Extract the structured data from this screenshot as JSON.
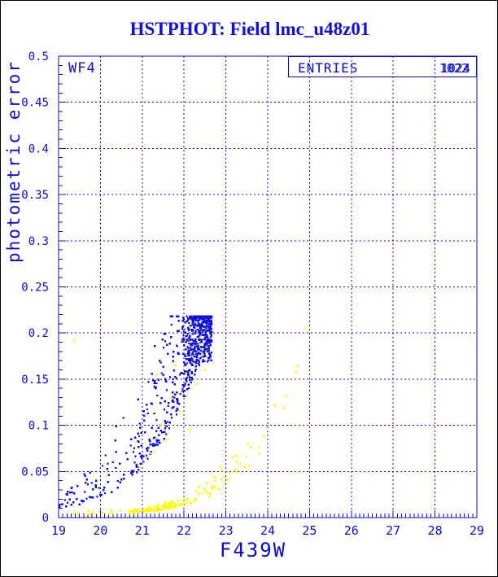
{
  "title": {
    "text": "HSTPHOT: Field lmc_u48z01"
  },
  "colors": {
    "ink": "#0b0bd0",
    "title": "#1010d8",
    "blue_points": "#1212d8",
    "yellow_points": "#ffff00",
    "background": "#ffffff",
    "outer_border": "#000000"
  },
  "chart_data": {
    "type": "scatter",
    "title": "HSTPHOT: Field lmc_u48z01",
    "xlabel": "F439W",
    "ylabel": "photometric error",
    "xlim": [
      19,
      29
    ],
    "ylim": [
      0,
      0.5
    ],
    "grid": "dashed lines at every major tick, both axes",
    "legend": "none",
    "x_ticks": [
      19,
      20,
      21,
      22,
      23,
      24,
      25,
      26,
      27,
      28,
      29
    ],
    "x_tick_labels": [
      "19",
      "20",
      "21",
      "22",
      "23",
      "24",
      "25",
      "26",
      "27",
      "28",
      "29"
    ],
    "y_ticks": [
      0,
      0.05,
      0.1,
      0.15,
      0.2,
      0.25,
      0.3,
      0.35,
      0.4,
      0.45,
      0.5
    ],
    "y_tick_labels": [
      "0",
      "0.05",
      "0.1",
      "0.15",
      "0.2",
      "0.25",
      "0.3",
      "0.35",
      "0.4",
      "0.45",
      "0.5"
    ],
    "x_grid": [
      20,
      21,
      22,
      23,
      24,
      25,
      26,
      27,
      28
    ],
    "y_grid": [
      0.05,
      0.1,
      0.15,
      0.2,
      0.25,
      0.3,
      0.35,
      0.4,
      0.45
    ],
    "x_minor_step": 0.1,
    "y_minor_step": 0.01,
    "annotations": {
      "detector_label": "WF4",
      "stats_box": {
        "label": "ENTRIES",
        "values": [
          "1024",
          "1022"
        ]
      }
    },
    "series": [
      {
        "name": "blue detections: error vs magnitude locus rising from (19,0.013) to dense cap at (22.0-22.66, 0.17-0.218)",
        "color": "#1212d8",
        "marker": "2px square",
        "trend_knots": [
          [
            19,
            0.013
          ],
          [
            19.5,
            0.018
          ],
          [
            20,
            0.027
          ],
          [
            20.5,
            0.04
          ],
          [
            21,
            0.063
          ],
          [
            21.5,
            0.097
          ],
          [
            22,
            0.147
          ],
          [
            22.3,
            0.177
          ],
          [
            22.66,
            0.211
          ]
        ],
        "outlier_points": [
          [
            19.15,
            0.019
          ],
          [
            19.28,
            0.027
          ],
          [
            19.45,
            0.034
          ],
          [
            19.62,
            0.047
          ],
          [
            19.9,
            0.04
          ],
          [
            20.05,
            0.056
          ],
          [
            20.2,
            0.046
          ],
          [
            20.3,
            0.06
          ],
          [
            20.38,
            0.099
          ],
          [
            20.55,
            0.108
          ],
          [
            20.62,
            0.07
          ],
          [
            20.73,
            0.078
          ],
          [
            20.9,
            0.128
          ],
          [
            21.05,
            0.105
          ],
          [
            21.15,
            0.147
          ],
          [
            21.3,
            0.186
          ],
          [
            21.45,
            0.168
          ],
          [
            21.55,
            0.199
          ],
          [
            21.7,
            0.209
          ],
          [
            21.85,
            0.178
          ]
        ]
      },
      {
        "name": "yellow detections: low-error locus along bottom plus sparse high-magnitude tail",
        "color": "#ffff00",
        "marker": "2px square",
        "trend_knots": [
          [
            19,
            0.0035
          ],
          [
            20,
            0.005
          ],
          [
            20.8,
            0.0065
          ],
          [
            21.3,
            0.009
          ],
          [
            21.8,
            0.0135
          ],
          [
            22.2,
            0.019
          ],
          [
            22.6,
            0.03
          ],
          [
            23,
            0.044
          ],
          [
            23.4,
            0.057
          ],
          [
            23.9,
            0.079
          ]
        ],
        "stray_points": [
          [
            23.45,
            0.055
          ],
          [
            23.6,
            0.076
          ],
          [
            23.9,
            0.088
          ],
          [
            24.02,
            0.1
          ],
          [
            24.17,
            0.122
          ],
          [
            24.39,
            0.119
          ],
          [
            24.45,
            0.132
          ],
          [
            24.68,
            0.158
          ],
          [
            24.72,
            0.164
          ],
          [
            24.9,
            0.205
          ]
        ],
        "in_arm_points": [
          [
            19.37,
            0.192
          ],
          [
            20.95,
            0.055
          ],
          [
            21.2,
            0.07
          ],
          [
            21.35,
            0.155
          ],
          [
            21.45,
            0.1
          ],
          [
            21.6,
            0.085
          ],
          [
            21.7,
            0.13
          ],
          [
            21.8,
            0.165
          ],
          [
            21.9,
            0.115
          ],
          [
            21.95,
            0.135
          ],
          [
            22.0,
            0.205
          ],
          [
            22.05,
            0.155
          ],
          [
            22.1,
            0.19
          ],
          [
            22.15,
            0.095
          ],
          [
            22.2,
            0.175
          ],
          [
            22.3,
            0.145
          ],
          [
            22.35,
            0.19
          ],
          [
            22.45,
            0.205
          ],
          [
            22.5,
            0.16
          ],
          [
            22.55,
            0.178
          ]
        ]
      }
    ],
    "generator": {
      "seed": 1337,
      "y_cap": 0.218,
      "y_floor": 0.002,
      "blue_arm_clusters": [
        {
          "x0": 19.0,
          "x1": 20.7,
          "count": 60,
          "su": 1.7,
          "sd": 0.25,
          "xp": 1.0
        },
        {
          "x0": 20.7,
          "x1": 21.9,
          "count": 170,
          "su": 1.1,
          "sd": 0.15,
          "xp": 0.85
        },
        {
          "x0": 21.9,
          "x1": 22.66,
          "count": 200,
          "su": 0.4,
          "sd": 0.12,
          "xp": 0.75
        }
      ],
      "blue_blob": {
        "x0": 21.95,
        "x1": 22.66,
        "y0": 0.168,
        "y1": 0.218,
        "count": 280,
        "xp": 1.25,
        "yp": 1.5
      },
      "yellow_arm_clusters": [
        {
          "x0": 19.1,
          "x1": 20.7,
          "count": 15,
          "su": 0.9,
          "sd": 0.4,
          "xp": 1.0
        },
        {
          "x0": 20.7,
          "x1": 21.75,
          "count": 100,
          "su": 0.55,
          "sd": 0.3,
          "xp": 1.0
        },
        {
          "x0": 21.75,
          "x1": 23.0,
          "count": 50,
          "su": 0.5,
          "sd": 0.25,
          "xp": 1.0
        },
        {
          "x0": 23.0,
          "x1": 23.9,
          "count": 13,
          "su": 0.35,
          "sd": 0.2,
          "xp": 1.0
        }
      ]
    }
  }
}
